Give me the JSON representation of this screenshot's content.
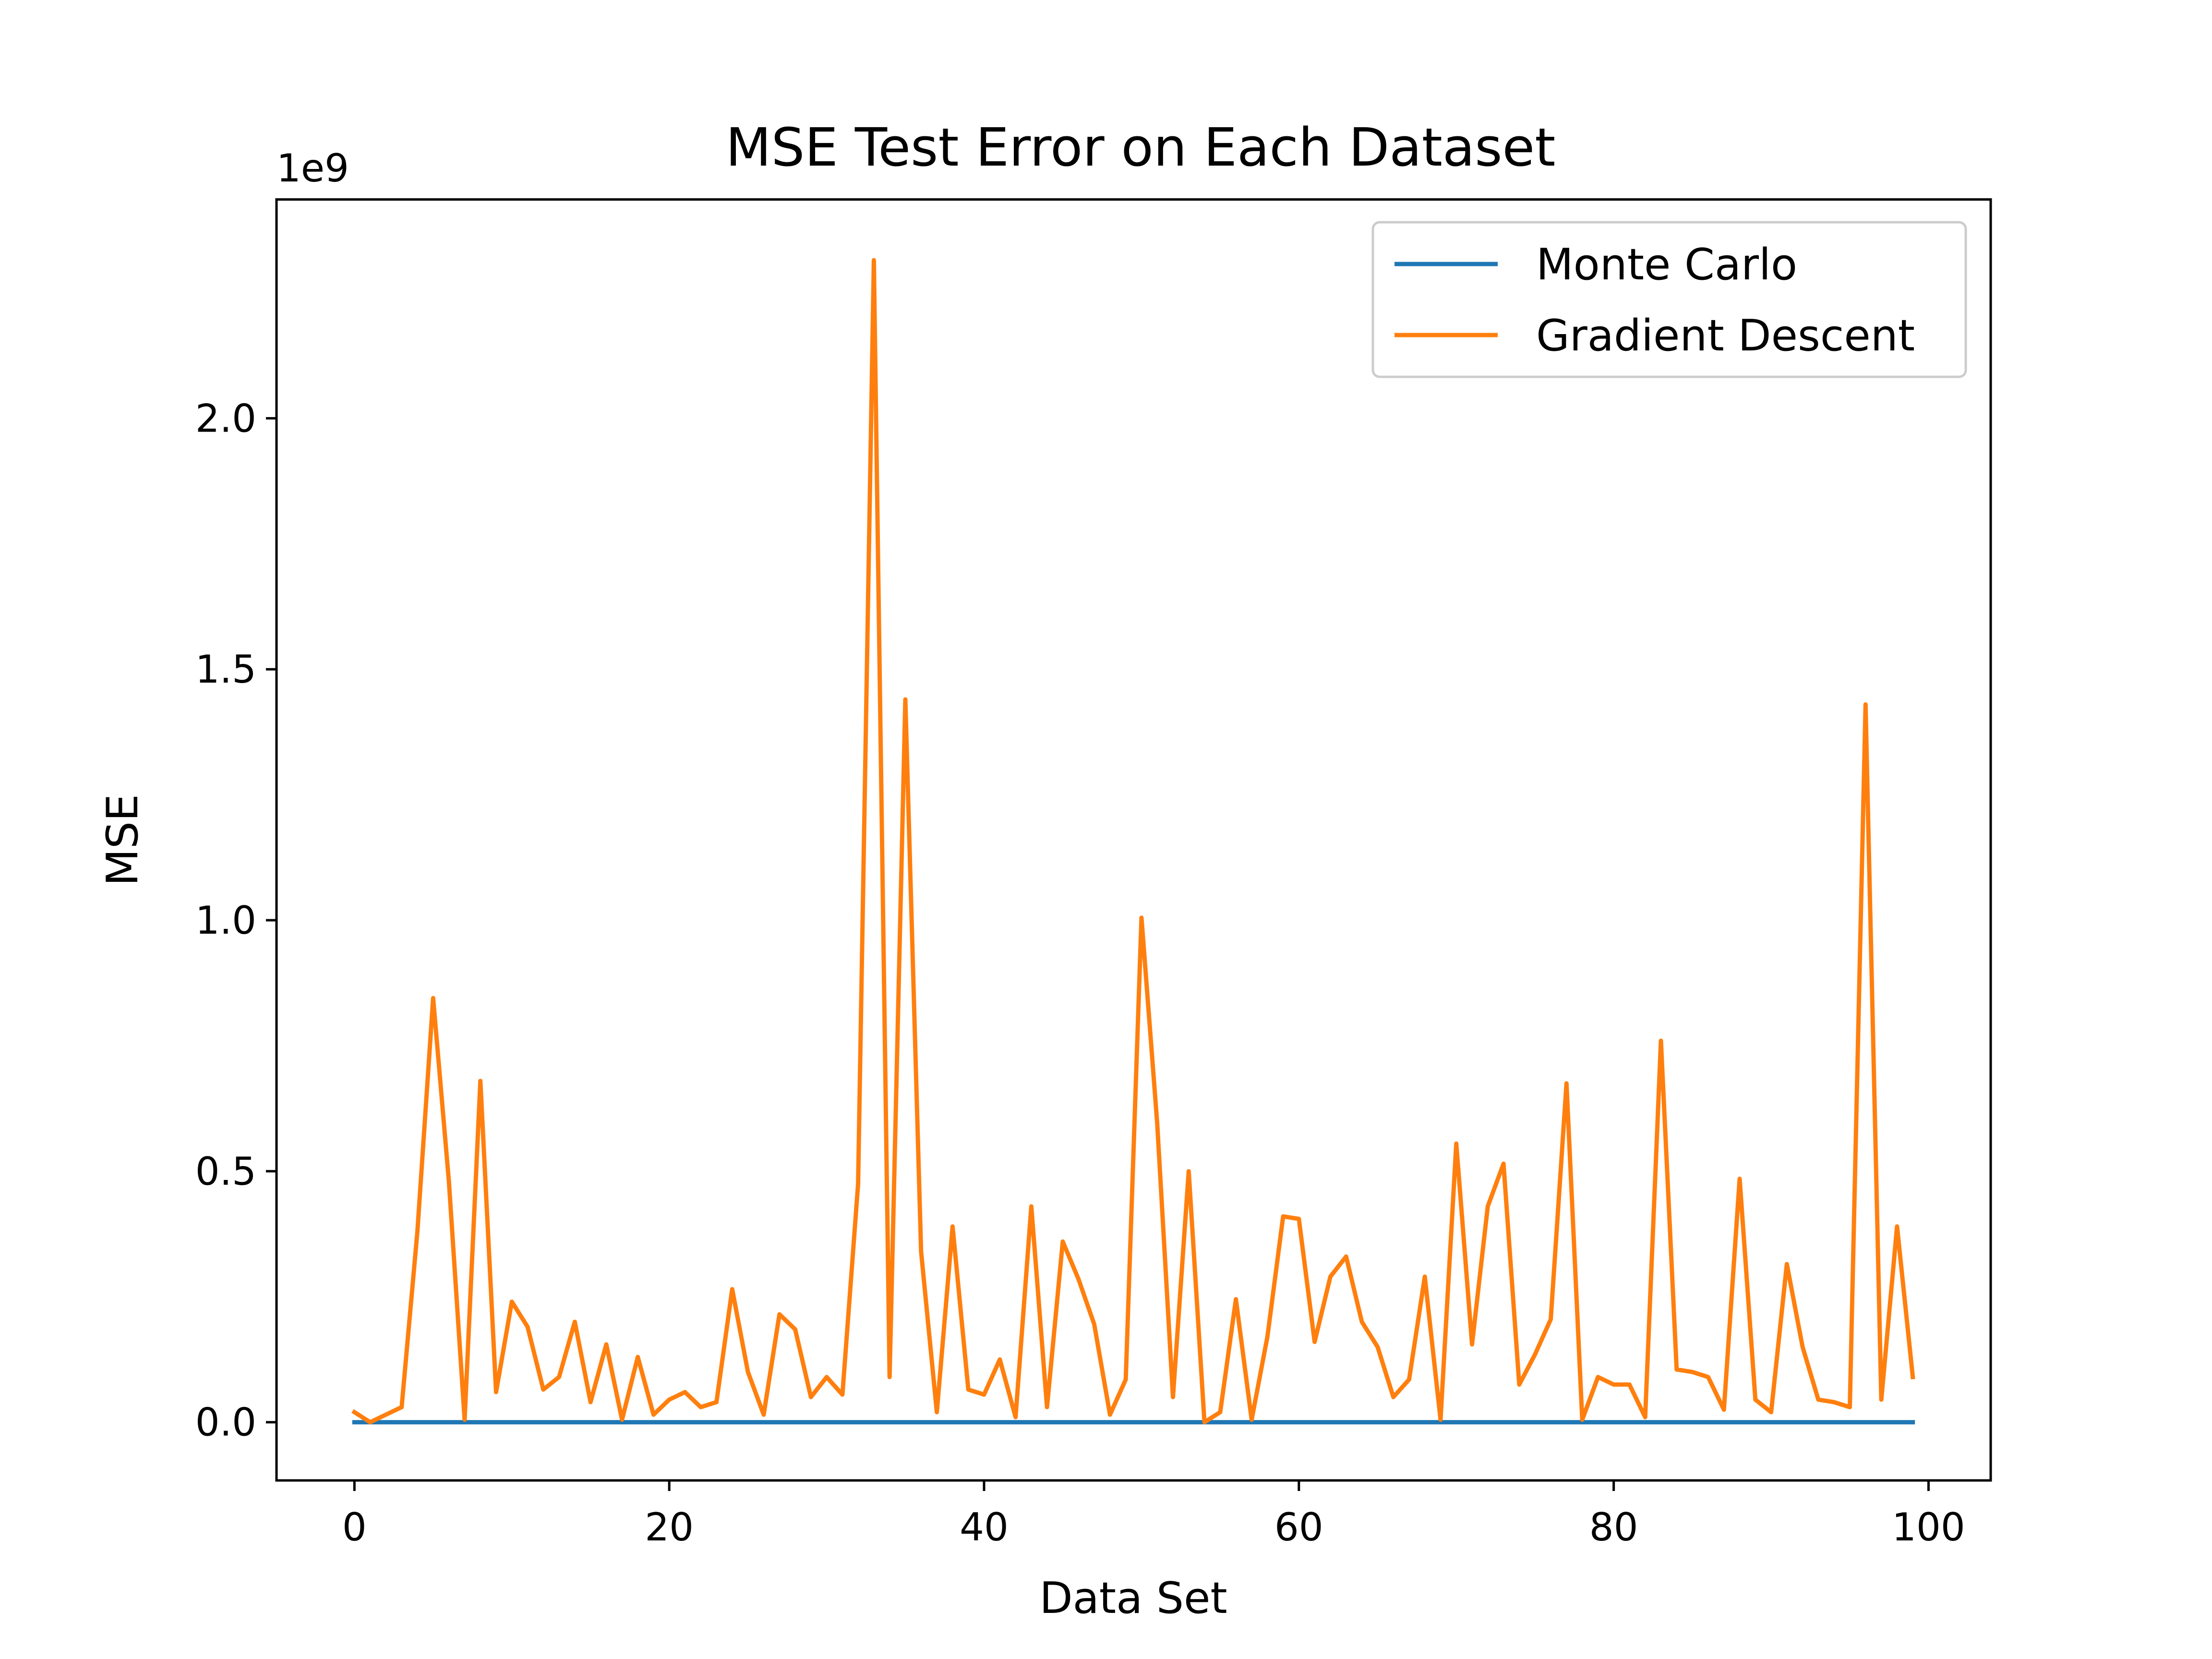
{
  "chart_data": {
    "type": "line",
    "title": "MSE Test Error on Each Dataset",
    "xlabel": "Data Set",
    "ylabel": "MSE",
    "y_offset_label": "1e9",
    "y_scale": 1000000000,
    "xlim": [
      -4.95,
      103.95
    ],
    "ylim": [
      -0.116,
      2.436
    ],
    "x_ticks": [
      0,
      20,
      40,
      60,
      80,
      100
    ],
    "x_tick_labels": [
      "0",
      "20",
      "40",
      "60",
      "80",
      "100"
    ],
    "y_ticks": [
      0.0,
      0.5,
      1.0,
      1.5,
      2.0
    ],
    "y_tick_labels": [
      "0.0",
      "0.5",
      "1.0",
      "1.5",
      "2.0"
    ],
    "grid": false,
    "legend_position": "top-right",
    "x": [
      0,
      1,
      2,
      3,
      4,
      5,
      6,
      7,
      8,
      9,
      10,
      11,
      12,
      13,
      14,
      15,
      16,
      17,
      18,
      19,
      20,
      21,
      22,
      23,
      24,
      25,
      26,
      27,
      28,
      29,
      30,
      31,
      32,
      33,
      34,
      35,
      36,
      37,
      38,
      39,
      40,
      41,
      42,
      43,
      44,
      45,
      46,
      47,
      48,
      49,
      50,
      51,
      52,
      53,
      54,
      55,
      56,
      57,
      58,
      59,
      60,
      61,
      62,
      63,
      64,
      65,
      66,
      67,
      68,
      69,
      70,
      71,
      72,
      73,
      74,
      75,
      76,
      77,
      78,
      79,
      80,
      81,
      82,
      83,
      84,
      85,
      86,
      87,
      88,
      89,
      90,
      91,
      92,
      93,
      94,
      95,
      96,
      97,
      98,
      99
    ],
    "series": [
      {
        "name": "Monte Carlo",
        "color": "#1f77b4",
        "values": [
          0,
          0,
          0,
          0,
          0,
          0,
          0,
          0,
          0,
          0,
          0,
          0,
          0,
          0,
          0,
          0,
          0,
          0,
          0,
          0,
          0,
          0,
          0,
          0,
          0,
          0,
          0,
          0,
          0,
          0,
          0,
          0,
          0,
          0,
          0,
          0,
          0,
          0,
          0,
          0,
          0,
          0,
          0,
          0,
          0,
          0,
          0,
          0,
          0,
          0,
          0,
          0,
          0,
          0,
          0,
          0,
          0,
          0,
          0,
          0,
          0,
          0,
          0,
          0,
          0,
          0,
          0,
          0,
          0,
          0,
          0,
          0,
          0,
          0,
          0,
          0,
          0,
          0,
          0,
          0,
          0,
          0,
          0,
          0,
          0,
          0,
          0,
          0,
          0,
          0,
          0,
          0,
          0,
          0,
          0,
          0,
          0,
          0,
          0,
          0
        ]
      },
      {
        "name": "Gradient Descent",
        "color": "#ff7f0e",
        "values": [
          0.02,
          0.0,
          0.015,
          0.03,
          0.38,
          0.845,
          0.48,
          0.005,
          0.68,
          0.06,
          0.24,
          0.19,
          0.065,
          0.09,
          0.2,
          0.04,
          0.155,
          0.005,
          0.13,
          0.015,
          0.045,
          0.06,
          0.03,
          0.04,
          0.265,
          0.1,
          0.015,
          0.215,
          0.185,
          0.05,
          0.09,
          0.055,
          0.475,
          2.315,
          0.09,
          1.44,
          0.34,
          0.02,
          0.39,
          0.065,
          0.055,
          0.125,
          0.01,
          0.43,
          0.03,
          0.36,
          0.285,
          0.195,
          0.015,
          0.085,
          1.005,
          0.595,
          0.05,
          0.5,
          0.0,
          0.02,
          0.245,
          0.005,
          0.17,
          0.41,
          0.405,
          0.16,
          0.29,
          0.33,
          0.2,
          0.15,
          0.05,
          0.085,
          0.29,
          0.005,
          0.555,
          0.155,
          0.43,
          0.515,
          0.075,
          0.135,
          0.205,
          0.675,
          0.005,
          0.09,
          0.075,
          0.075,
          0.01,
          0.76,
          0.105,
          0.1,
          0.09,
          0.025,
          0.485,
          0.045,
          0.02,
          0.315,
          0.15,
          0.045,
          0.04,
          0.03,
          1.43,
          0.045,
          0.39,
          0.09
        ]
      }
    ]
  }
}
